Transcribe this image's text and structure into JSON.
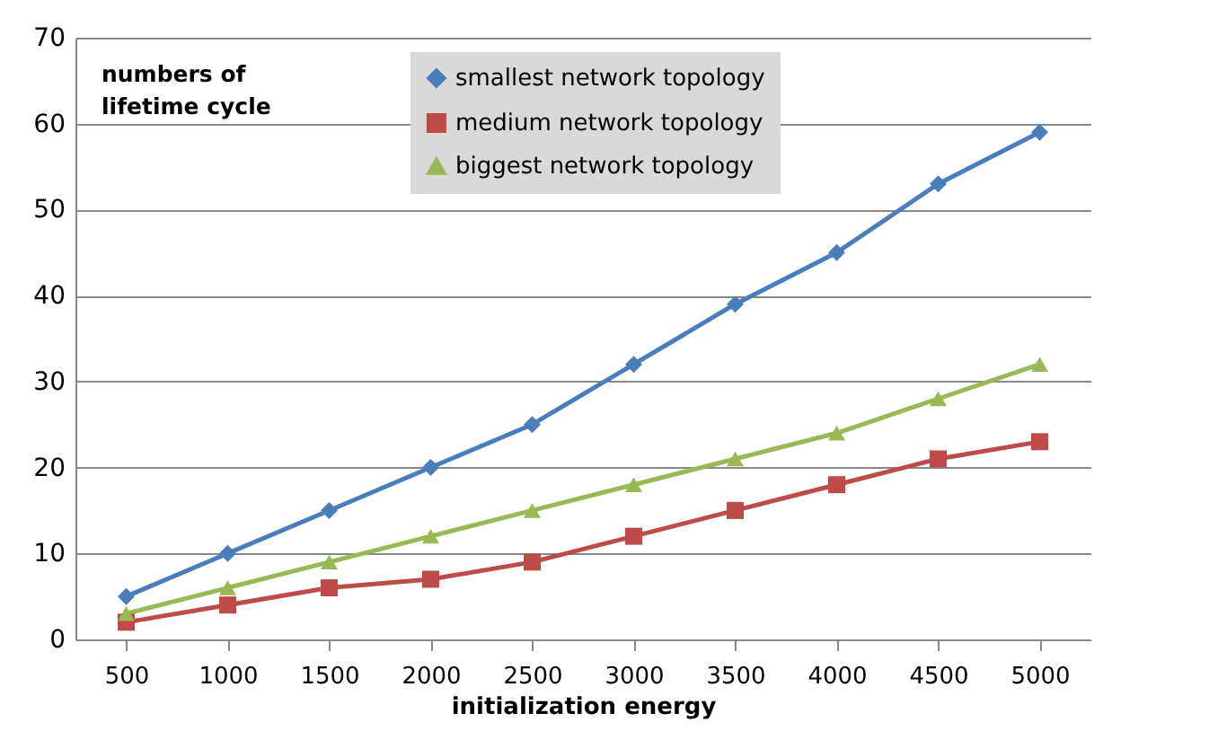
{
  "chart_data": {
    "type": "line",
    "xlabel": "initialization energy",
    "ylabel": "numbers of lifetime cycle",
    "categories": [
      "500",
      "1000",
      "1500",
      "2000",
      "2500",
      "3000",
      "3500",
      "4000",
      "4500",
      "5000"
    ],
    "series": [
      {
        "name": "smallest network topology",
        "color": "#4a7ebb",
        "marker": "diamond",
        "values": [
          5,
          10,
          15,
          20,
          25,
          32,
          39,
          45,
          53,
          59
        ]
      },
      {
        "name": "medium network topology",
        "color": "#be4b48",
        "marker": "square",
        "values": [
          2,
          4,
          6,
          7,
          9,
          12,
          15,
          18,
          21,
          23
        ]
      },
      {
        "name": "biggest network topology",
        "color": "#98b954",
        "marker": "triangle",
        "values": [
          3,
          6,
          9,
          12,
          15,
          18,
          21,
          24,
          28,
          32
        ]
      }
    ],
    "ylim": [
      0,
      70
    ],
    "yticks": [
      0,
      10,
      20,
      30,
      40,
      50,
      60,
      70
    ],
    "grid": "y",
    "legend": "top"
  }
}
